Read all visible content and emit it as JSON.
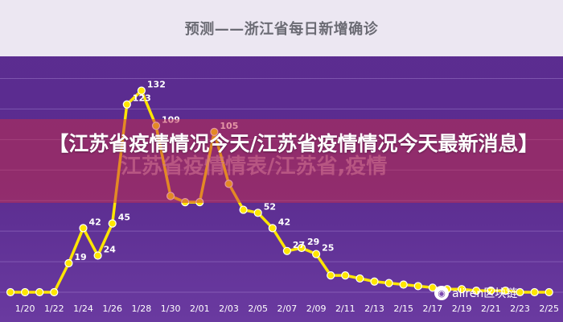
{
  "overlay": {
    "headline": "【江苏省疫情情况今天/江苏省疫情情况今天最新消息】",
    "ghost_text": "江苏省疫情情表/江苏省,疫情"
  },
  "watermark": {
    "icon": "wechat-icon",
    "text": "aliren区块链"
  },
  "colors": {
    "background": "#5c2d91",
    "title_band": "#ece7f2",
    "line": "#ffe600",
    "overlay": "#c72c4a"
  },
  "chart_data": {
    "type": "line",
    "title": "预测——浙江省每日新增确诊",
    "xlabel": "",
    "ylabel": "",
    "grid": true,
    "x": [
      "1/19",
      "1/20",
      "1/21",
      "1/22",
      "1/23",
      "1/24",
      "1/25",
      "1/26",
      "1/27",
      "1/28",
      "1/29",
      "1/30",
      "1/31",
      "2/01",
      "2/02",
      "2/03",
      "2/04",
      "2/05",
      "2/06",
      "2/07",
      "2/08",
      "2/09",
      "2/10",
      "2/11",
      "2/12",
      "2/13",
      "2/14",
      "2/15",
      "2/16",
      "2/17",
      "2/18",
      "2/19",
      "2/20",
      "2/21",
      "2/22",
      "2/23",
      "2/24",
      "2/25"
    ],
    "ticks": [
      "1/20",
      "1/22",
      "1/24",
      "1/26",
      "1/28",
      "1/30",
      "2/01",
      "2/03",
      "2/05",
      "2/07",
      "2/09",
      "2/11",
      "2/13",
      "2/15",
      "2/17",
      "2/19",
      "2/21",
      "2/23",
      "2/25"
    ],
    "series": [
      {
        "values": [
          0,
          0,
          0,
          0,
          19,
          42,
          24,
          45,
          123,
          132,
          109,
          63,
          59,
          59,
          105,
          71,
          54,
          52,
          42,
          27,
          29,
          25,
          11,
          11,
          9,
          7,
          6,
          5,
          4,
          3,
          2,
          2,
          1,
          1,
          1,
          0,
          0,
          0
        ],
        "labels": [
          "",
          "",
          "",
          "",
          "19",
          "42",
          "24",
          "45",
          "123",
          "132",
          "109",
          "",
          "",
          "",
          "105",
          "",
          "",
          "52",
          "42",
          "27",
          "29",
          "25",
          "",
          "",
          "",
          "",
          "",
          "",
          "",
          "",
          "",
          "",
          "",
          "",
          "",
          "",
          "",
          ""
        ]
      }
    ],
    "ylim": [
      0,
      145
    ]
  }
}
